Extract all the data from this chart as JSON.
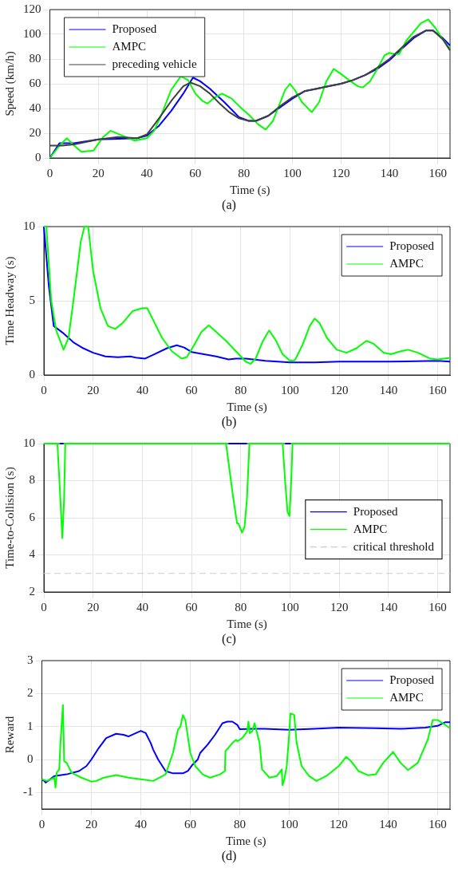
{
  "chart_data": [
    {
      "type": "line",
      "xlabel": "Time (s)",
      "ylabel": "Speed (km/h)",
      "annotations": [
        "(a)"
      ],
      "xlim": [
        0,
        165
      ],
      "xticks": [
        0,
        20,
        40,
        60,
        80,
        100,
        120,
        140,
        160
      ],
      "ylim": [
        0,
        120
      ],
      "yticks": [
        0,
        20,
        40,
        60,
        80,
        100,
        120
      ],
      "grid": true,
      "legend": "top left",
      "line_style": "solid",
      "marker": "none",
      "series": [
        {
          "name": "Proposed",
          "color": "#0000ff",
          "x": [
            0,
            4,
            10,
            20,
            36,
            40,
            45,
            50,
            55,
            59,
            62,
            66,
            72,
            78,
            82,
            85,
            90,
            95,
            100,
            105,
            110,
            115,
            120,
            125,
            130,
            135,
            140,
            145,
            150,
            155,
            158,
            162,
            165
          ],
          "values": [
            0,
            12,
            12,
            15,
            16,
            18,
            26,
            38,
            52,
            65,
            62,
            56,
            45,
            33,
            30,
            30,
            34,
            41,
            48,
            54,
            56,
            58,
            60,
            63,
            67,
            72,
            79,
            88,
            97,
            103,
            103,
            97,
            91
          ]
        },
        {
          "name": "AMPC",
          "color": "#00ff00",
          "x": [
            0,
            4,
            7,
            10,
            13,
            18,
            22,
            25,
            30,
            35,
            40,
            43,
            46,
            50,
            54,
            57,
            60,
            63,
            65,
            68,
            71,
            75,
            78,
            82,
            86,
            89,
            92,
            95,
            97,
            99,
            101,
            104,
            108,
            111,
            114,
            117,
            120,
            124,
            127,
            129,
            132,
            135,
            138,
            140,
            142,
            144,
            147,
            150,
            153,
            156,
            159,
            162,
            165
          ],
          "values": [
            0,
            10,
            16,
            10,
            5,
            6,
            17,
            22,
            18,
            14,
            16,
            22,
            35,
            55,
            66,
            63,
            52,
            46,
            44,
            49,
            52,
            48,
            42,
            35,
            27,
            23,
            30,
            45,
            55,
            60,
            55,
            45,
            37,
            45,
            62,
            72,
            68,
            62,
            58,
            57,
            62,
            72,
            83,
            85,
            84,
            84,
            95,
            102,
            109,
            112,
            105,
            96,
            88
          ]
        },
        {
          "name": "preceding vehicle",
          "color": "#404040",
          "x": [
            0,
            5,
            10,
            20,
            28,
            36,
            40,
            45,
            50,
            55,
            58,
            62,
            66,
            70,
            74,
            78,
            82,
            85,
            90,
            95,
            100,
            105,
            110,
            115,
            120,
            125,
            130,
            135,
            140,
            145,
            150,
            155,
            158,
            162,
            165
          ],
          "values": [
            10,
            10,
            11,
            15,
            17,
            16,
            19,
            32,
            46,
            58,
            61,
            58,
            52,
            44,
            37,
            32,
            30,
            30,
            34,
            42,
            49,
            54,
            56,
            58,
            60,
            63,
            67,
            73,
            80,
            89,
            98,
            103,
            103,
            96,
            87
          ]
        }
      ]
    },
    {
      "type": "line",
      "xlabel": "Time (s)",
      "ylabel": "Time Headway (s)",
      "annotations": [
        "(b)"
      ],
      "xlim": [
        0,
        165
      ],
      "xticks": [
        0,
        20,
        40,
        60,
        80,
        100,
        120,
        140,
        160
      ],
      "ylim": [
        0,
        10
      ],
      "yticks": [
        0,
        5,
        10
      ],
      "grid": true,
      "legend": "top right",
      "line_style": "solid",
      "marker": "none",
      "series": [
        {
          "name": "Proposed",
          "color": "#0000ff",
          "x": [
            0,
            2,
            4,
            8,
            12,
            16,
            20,
            25,
            30,
            35,
            38,
            41,
            45,
            50,
            54,
            57,
            60,
            65,
            70,
            75,
            78,
            82,
            85,
            90,
            95,
            100,
            110,
            120,
            140,
            160,
            165
          ],
          "values": [
            10,
            6,
            3.3,
            2.8,
            2.2,
            1.8,
            1.5,
            1.25,
            1.2,
            1.25,
            1.15,
            1.1,
            1.4,
            1.8,
            2.0,
            1.85,
            1.55,
            1.4,
            1.25,
            1.05,
            1.1,
            1.1,
            1.05,
            0.95,
            0.9,
            0.85,
            0.85,
            0.9,
            0.9,
            0.95,
            0.9
          ]
        },
        {
          "name": "AMPC",
          "color": "#00ff00",
          "x": [
            0,
            1,
            3,
            5,
            8,
            10,
            12,
            15,
            16.5,
            18,
            20,
            23,
            26,
            29,
            32,
            36,
            40,
            42,
            45,
            48,
            52,
            56,
            58,
            61,
            64,
            67,
            70,
            74,
            78,
            82,
            84,
            86,
            89,
            91.5,
            94,
            97,
            100,
            102,
            105,
            108,
            110,
            112,
            115,
            119,
            123,
            127,
            131,
            134,
            138,
            141,
            145,
            148,
            152,
            157,
            160,
            165
          ],
          "values": [
            10,
            10,
            5,
            3,
            1.7,
            2.5,
            5,
            9,
            10,
            10,
            7,
            4.5,
            3.3,
            3.1,
            3.5,
            4.3,
            4.5,
            4.5,
            3.5,
            2.5,
            1.6,
            1.1,
            1.2,
            2,
            2.9,
            3.35,
            2.9,
            2.3,
            1.6,
            0.9,
            0.75,
            1.1,
            2.3,
            3.0,
            2.4,
            1.4,
            0.95,
            1.0,
            2.0,
            3.3,
            3.8,
            3.5,
            2.5,
            1.7,
            1.5,
            1.8,
            2.3,
            2.1,
            1.5,
            1.4,
            1.6,
            1.7,
            1.5,
            1.1,
            1.05,
            1.15
          ]
        }
      ]
    },
    {
      "type": "line",
      "xlabel": "Time (s)",
      "ylabel": "Time-to-Collision (s)",
      "annotations": [
        "(c)"
      ],
      "xlim": [
        0,
        165
      ],
      "xticks": [
        0,
        20,
        40,
        60,
        80,
        100,
        120,
        140,
        160
      ],
      "ylim": [
        2,
        10
      ],
      "yticks": [
        2,
        4,
        6,
        8,
        10
      ],
      "grid": true,
      "legend": "right",
      "line_style": "solid",
      "marker": "none",
      "ref_lines": [
        {
          "axis": "y",
          "value": 3,
          "label": "critical threshold",
          "color": "#cccccc",
          "line_style": "dashed"
        }
      ],
      "series": [
        {
          "name": "Proposed",
          "color": "#0000ff",
          "x": [
            6.5,
            8,
            8.1,
            75,
            82.5,
            82.6,
            98,
            100.3
          ],
          "values": [
            10,
            10,
            null,
            10,
            10,
            null,
            10,
            10
          ]
        },
        {
          "name": "AMPC",
          "color": "#00ff00",
          "x": [
            0,
            5.5,
            6.5,
            7.5,
            8.2,
            8.7,
            74,
            75,
            77,
            78.5,
            79,
            80.5,
            81.5,
            82.5,
            83.5,
            97,
            98,
            99,
            99.8,
            100.5,
            101,
            165
          ],
          "values": [
            10,
            10,
            7.5,
            4.9,
            7,
            10,
            10,
            9,
            7,
            5.7,
            5.7,
            5.2,
            5.5,
            7,
            10,
            10,
            8,
            6.3,
            6.1,
            8,
            10,
            10
          ]
        }
      ]
    },
    {
      "type": "line",
      "xlabel": "Time (s)",
      "ylabel": "Reward",
      "annotations": [
        "(d)"
      ],
      "xlim": [
        0,
        165
      ],
      "xticks": [
        0,
        20,
        40,
        60,
        80,
        100,
        120,
        140,
        160
      ],
      "ylim": [
        -1.5,
        3
      ],
      "yticks": [
        -1,
        0,
        1,
        2,
        3
      ],
      "grid": true,
      "legend": "top right",
      "line_style": "solid",
      "marker": "none",
      "series": [
        {
          "name": "Proposed",
          "color": "#0000ff",
          "x": [
            0,
            1,
            1.5,
            3,
            5,
            10,
            15,
            18,
            20,
            23,
            26,
            30,
            33,
            35,
            38,
            40,
            42,
            44,
            45,
            47,
            50,
            53,
            57,
            59,
            61,
            63,
            64,
            67,
            70,
            73,
            75,
            77,
            79,
            80,
            85,
            90,
            100,
            110,
            120,
            135,
            145,
            155,
            160,
            163,
            165
          ],
          "values": [
            -0.62,
            -0.65,
            -0.7,
            -0.62,
            -0.5,
            -0.45,
            -0.35,
            -0.2,
            0,
            0.35,
            0.65,
            0.78,
            0.75,
            0.7,
            0.8,
            0.87,
            0.8,
            0.5,
            0.3,
            0,
            -0.35,
            -0.42,
            -0.42,
            -0.35,
            -0.15,
            0,
            0.2,
            0.45,
            0.75,
            1.1,
            1.15,
            1.15,
            1.05,
            0.92,
            0.93,
            0.93,
            0.9,
            0.93,
            0.97,
            0.95,
            0.93,
            0.97,
            1.02,
            1.13,
            1.13
          ]
        },
        {
          "name": "AMPC",
          "color": "#00ff00",
          "x": [
            0,
            2,
            5,
            5.5,
            6,
            7,
            7.5,
            8.5,
            9,
            10,
            12,
            16,
            20,
            22,
            25,
            30,
            35,
            40,
            45,
            50,
            53,
            55,
            56,
            57,
            58,
            60,
            62,
            65,
            68,
            72,
            74,
            74.2,
            77,
            78.5,
            79,
            81,
            83,
            83.5,
            84,
            85,
            86,
            88,
            89,
            92,
            95,
            97,
            97.3,
            98,
            99,
            100,
            100.5,
            102,
            103,
            105,
            108,
            111,
            115,
            120,
            123,
            125,
            128,
            132,
            135,
            138,
            142,
            145,
            148,
            152,
            156,
            158,
            160,
            165
          ],
          "values": [
            -0.6,
            -0.65,
            -0.55,
            -0.85,
            -0.4,
            -0.3,
            0.5,
            1.65,
            -0.05,
            -0.1,
            -0.4,
            -0.55,
            -0.67,
            -0.65,
            -0.55,
            -0.47,
            -0.55,
            -0.6,
            -0.65,
            -0.45,
            0.2,
            0.9,
            1.0,
            1.35,
            1.2,
            0.2,
            -0.2,
            -0.45,
            -0.55,
            -0.45,
            -0.35,
            0.25,
            0.5,
            0.6,
            0.55,
            0.65,
            0.85,
            1.15,
            0.8,
            0.85,
            1.1,
            0.5,
            -0.3,
            -0.55,
            -0.5,
            -0.3,
            -0.78,
            -0.6,
            -0.2,
            0.8,
            1.4,
            1.35,
            0.5,
            -0.2,
            -0.5,
            -0.65,
            -0.5,
            -0.2,
            0.08,
            -0.05,
            -0.35,
            -0.48,
            -0.45,
            -0.1,
            0.23,
            -0.1,
            -0.32,
            -0.1,
            0.6,
            1.2,
            1.2,
            0.95
          ]
        }
      ]
    }
  ]
}
